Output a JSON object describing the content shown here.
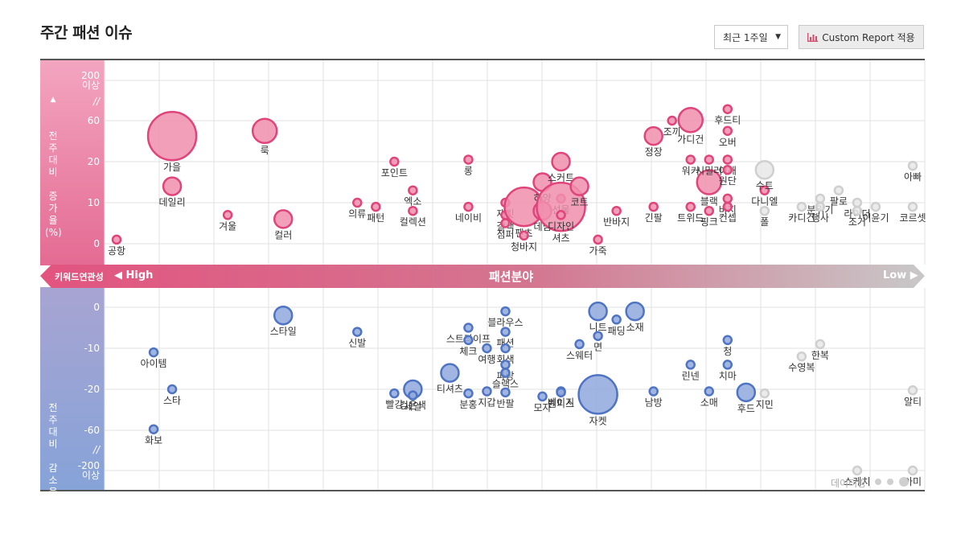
{
  "header": {
    "title": "주간 패션 이슈",
    "period_select": "최근 1주일",
    "report_button": "Custom Report 적용"
  },
  "axis": {
    "top_label": "전\n주\n대\n비\n \n증\n가\n율\n(%)",
    "bottom_label": "전\n주\n대\n비\n \n감\n소\n율\n(%)",
    "top_ticks": [
      "200\n이상",
      "60",
      "20",
      "10",
      "0"
    ],
    "bottom_ticks": [
      "0",
      "-10",
      "-20",
      "-60",
      "-200\n이상"
    ],
    "break_mark": "//"
  },
  "band": {
    "left_label": "키워드연관성",
    "high_label": "High",
    "center_label": "패션분야",
    "low_label": "Low"
  },
  "legend": {
    "label": "데이터량"
  },
  "colors": {
    "pink_fill": "#f08fae",
    "pink_stroke": "#e0447a",
    "blue_fill": "#8fa8dc",
    "blue_stroke": "#4f74c4",
    "gray_fill": "#e8e8e8",
    "gray_stroke": "#cfcfcf",
    "band_left": "#e2547f",
    "band_right": "#c8c8c8"
  },
  "chart_data": {
    "type": "scatter",
    "title": "",
    "xlabel": "패션분야 (키워드연관성 High → Low)",
    "ylabel": "전주대비 증감율(%)",
    "y_top_scale": [
      0,
      10,
      20,
      60,
      200
    ],
    "y_bottom_scale": [
      0,
      -10,
      -20,
      -60,
      -200
    ],
    "increase": [
      {
        "name": "공항",
        "rank": 1,
        "change": 1,
        "size": 1,
        "color": "pink"
      },
      {
        "name": "가을",
        "rank": 4,
        "change": 45,
        "size": 5,
        "color": "pink"
      },
      {
        "name": "데일리",
        "rank": 4,
        "change": 14,
        "size": 2,
        "color": "pink"
      },
      {
        "name": "겨울",
        "rank": 7,
        "change": 7,
        "size": 1,
        "color": "pink"
      },
      {
        "name": "룩",
        "rank": 9,
        "change": 50,
        "size": 3,
        "color": "pink"
      },
      {
        "name": "컬러",
        "rank": 10,
        "change": 6,
        "size": 2,
        "color": "pink"
      },
      {
        "name": "의류",
        "rank": 14,
        "change": 10,
        "size": 1,
        "color": "pink"
      },
      {
        "name": "패턴",
        "rank": 15,
        "change": 9,
        "size": 1,
        "color": "pink"
      },
      {
        "name": "포인트",
        "rank": 16,
        "change": 20,
        "size": 1,
        "color": "pink"
      },
      {
        "name": "엑소",
        "rank": 17,
        "change": 13,
        "size": 1,
        "color": "pink"
      },
      {
        "name": "컬렉션",
        "rank": 17,
        "change": 8,
        "size": 1,
        "color": "pink"
      },
      {
        "name": "롱",
        "rank": 20,
        "change": 22,
        "size": 1,
        "color": "pink"
      },
      {
        "name": "네이비",
        "rank": 20,
        "change": 9,
        "size": 1,
        "color": "pink"
      },
      {
        "name": "재킷",
        "rank": 22,
        "change": 10,
        "size": 1,
        "color": "pink"
      },
      {
        "name": "갈색",
        "rank": 22,
        "change": 7,
        "size": 1,
        "color": "pink"
      },
      {
        "name": "점퍼",
        "rank": 22,
        "change": 5,
        "size": 1,
        "color": "pink"
      },
      {
        "name": "팬츠",
        "rank": 23,
        "change": 9,
        "size": 4,
        "color": "pink"
      },
      {
        "name": "청바지",
        "rank": 23,
        "change": 2,
        "size": 1,
        "color": "pink"
      },
      {
        "name": "하양",
        "rank": 24,
        "change": 15,
        "size": 2,
        "color": "pink"
      },
      {
        "name": "데님",
        "rank": 24,
        "change": 8,
        "size": 2,
        "color": "pink"
      },
      {
        "name": "스커트",
        "rank": 25,
        "change": 20,
        "size": 2,
        "color": "pink"
      },
      {
        "name": "선물",
        "rank": 25,
        "change": 11,
        "size": 1,
        "color": "pink"
      },
      {
        "name": "셔츠",
        "rank": 25,
        "change": 9,
        "size": 5,
        "color": "pink"
      },
      {
        "name": "디자인",
        "rank": 25,
        "change": 7,
        "size": 1,
        "color": "pink"
      },
      {
        "name": "코트",
        "rank": 26,
        "change": 14,
        "size": 2,
        "color": "pink"
      },
      {
        "name": "가죽",
        "rank": 27,
        "change": 1,
        "size": 1,
        "color": "pink"
      },
      {
        "name": "반바지",
        "rank": 28,
        "change": 8,
        "size": 1,
        "color": "pink"
      },
      {
        "name": "긴팔",
        "rank": 30,
        "change": 9,
        "size": 1,
        "color": "pink"
      },
      {
        "name": "정장",
        "rank": 30,
        "change": 45,
        "size": 2,
        "color": "pink"
      },
      {
        "name": "조끼",
        "rank": 31,
        "change": 60,
        "size": 1,
        "color": "pink"
      },
      {
        "name": "가디건",
        "rank": 32,
        "change": 62,
        "size": 3,
        "color": "pink"
      },
      {
        "name": "워커",
        "rank": 32,
        "change": 22,
        "size": 1,
        "color": "pink"
      },
      {
        "name": "트위드",
        "rank": 32,
        "change": 9,
        "size": 1,
        "color": "pink"
      },
      {
        "name": "블랙",
        "rank": 33,
        "change": 15,
        "size": 3,
        "color": "pink"
      },
      {
        "name": "시밀러",
        "rank": 33,
        "change": 22,
        "size": 1,
        "color": "pink"
      },
      {
        "name": "핑크",
        "rank": 33,
        "change": 8,
        "size": 1,
        "color": "pink"
      },
      {
        "name": "후드티",
        "rank": 34,
        "change": 100,
        "size": 1,
        "color": "pink"
      },
      {
        "name": "오버",
        "rank": 34,
        "change": 50,
        "size": 1,
        "color": "pink"
      },
      {
        "name": "어깨",
        "rank": 34,
        "change": 22,
        "size": 1,
        "color": "pink"
      },
      {
        "name": "원단",
        "rank": 34,
        "change": 18,
        "size": 1,
        "color": "pink"
      },
      {
        "name": "바지",
        "rank": 34,
        "change": 11,
        "size": 1,
        "color": "pink"
      },
      {
        "name": "컨셉",
        "rank": 34,
        "change": 9,
        "size": 1,
        "color": "pink"
      },
      {
        "name": "다니엘",
        "rank": 36,
        "change": 13,
        "size": 1,
        "color": "pink"
      },
      {
        "name": "수트",
        "rank": 36,
        "change": 18,
        "size": 2,
        "color": "gray"
      },
      {
        "name": "폴",
        "rank": 36,
        "change": 8,
        "size": 1,
        "color": "gray"
      },
      {
        "name": "카디건",
        "rank": 38,
        "change": 9,
        "size": 1,
        "color": "gray"
      },
      {
        "name": "분위기",
        "rank": 39,
        "change": 11,
        "size": 1,
        "color": "gray"
      },
      {
        "name": "행사",
        "rank": 39,
        "change": 9,
        "size": 1,
        "color": "gray"
      },
      {
        "name": "팔로",
        "rank": 40,
        "change": 13,
        "size": 1,
        "color": "gray"
      },
      {
        "name": "라이더",
        "rank": 41,
        "change": 10,
        "size": 1,
        "color": "gray"
      },
      {
        "name": "조거",
        "rank": 41,
        "change": 8,
        "size": 1,
        "color": "gray"
      },
      {
        "name": "이윤기",
        "rank": 42,
        "change": 9,
        "size": 1,
        "color": "gray"
      },
      {
        "name": "아빠",
        "rank": 44,
        "change": 19,
        "size": 1,
        "color": "gray"
      },
      {
        "name": "코르셋",
        "rank": 44,
        "change": 9,
        "size": 1,
        "color": "gray"
      }
    ],
    "decrease": [
      {
        "name": "아이템",
        "rank": 3,
        "change": -11,
        "size": 1,
        "color": "blue"
      },
      {
        "name": "스타",
        "rank": 4,
        "change": -20,
        "size": 1,
        "color": "blue"
      },
      {
        "name": "화보",
        "rank": 3,
        "change": -59,
        "size": 1,
        "color": "blue"
      },
      {
        "name": "스타일",
        "rank": 10,
        "change": -2,
        "size": 2,
        "color": "blue"
      },
      {
        "name": "신발",
        "rank": 14,
        "change": -6,
        "size": 1,
        "color": "blue"
      },
      {
        "name": "검은색",
        "rank": 17,
        "change": -20,
        "size": 2,
        "color": "blue"
      },
      {
        "name": "빨강",
        "rank": 16,
        "change": -24,
        "size": 1,
        "color": "blue"
      },
      {
        "name": "세일",
        "rank": 17,
        "change": -26,
        "size": 1,
        "color": "blue"
      },
      {
        "name": "티셔츠",
        "rank": 19,
        "change": -16,
        "size": 2,
        "color": "blue"
      },
      {
        "name": "분홍",
        "rank": 20,
        "change": -24,
        "size": 1,
        "color": "blue"
      },
      {
        "name": "스트라이프",
        "rank": 20,
        "change": -5,
        "size": 1,
        "color": "blue"
      },
      {
        "name": "체크",
        "rank": 20,
        "change": -8,
        "size": 1,
        "color": "blue"
      },
      {
        "name": "여행",
        "rank": 21,
        "change": -10,
        "size": 1,
        "color": "blue"
      },
      {
        "name": "지갑",
        "rank": 21,
        "change": -22,
        "size": 1,
        "color": "blue"
      },
      {
        "name": "블라우스",
        "rank": 22,
        "change": -1,
        "size": 1,
        "color": "blue"
      },
      {
        "name": "패션",
        "rank": 22,
        "change": -6,
        "size": 1,
        "color": "blue"
      },
      {
        "name": "회색",
        "rank": 22,
        "change": -10,
        "size": 1,
        "color": "blue"
      },
      {
        "name": "파랑",
        "rank": 22,
        "change": -14,
        "size": 1,
        "color": "blue"
      },
      {
        "name": "슬랙스",
        "rank": 22,
        "change": -16,
        "size": 1,
        "color": "blue"
      },
      {
        "name": "반팔",
        "rank": 22,
        "change": -23,
        "size": 1,
        "color": "blue"
      },
      {
        "name": "모자",
        "rank": 24,
        "change": -27,
        "size": 1,
        "color": "blue"
      },
      {
        "name": "베이지",
        "rank": 25,
        "change": -22,
        "size": 1,
        "color": "blue"
      },
      {
        "name": "원피스",
        "rank": 25,
        "change": -23,
        "size": 1,
        "color": "blue"
      },
      {
        "name": "스웨터",
        "rank": 26,
        "change": -9,
        "size": 1,
        "color": "blue"
      },
      {
        "name": "니트",
        "rank": 27,
        "change": -1,
        "size": 2,
        "color": "blue"
      },
      {
        "name": "면",
        "rank": 27,
        "change": -7,
        "size": 1,
        "color": "blue"
      },
      {
        "name": "패딩",
        "rank": 28,
        "change": -3,
        "size": 1,
        "color": "blue"
      },
      {
        "name": "소재",
        "rank": 29,
        "change": -1,
        "size": 2,
        "color": "blue"
      },
      {
        "name": "자켓",
        "rank": 27,
        "change": -25,
        "size": 4,
        "color": "blue"
      },
      {
        "name": "남방",
        "rank": 30,
        "change": -22,
        "size": 1,
        "color": "blue"
      },
      {
        "name": "린넨",
        "rank": 32,
        "change": -14,
        "size": 1,
        "color": "blue"
      },
      {
        "name": "소매",
        "rank": 33,
        "change": -22,
        "size": 1,
        "color": "blue"
      },
      {
        "name": "청",
        "rank": 34,
        "change": -8,
        "size": 1,
        "color": "blue"
      },
      {
        "name": "치마",
        "rank": 34,
        "change": -14,
        "size": 1,
        "color": "blue"
      },
      {
        "name": "후드",
        "rank": 35,
        "change": -23,
        "size": 2,
        "color": "blue"
      },
      {
        "name": "지민",
        "rank": 36,
        "change": -24,
        "size": 1,
        "color": "gray"
      },
      {
        "name": "수영복",
        "rank": 38,
        "change": -12,
        "size": 1,
        "color": "gray"
      },
      {
        "name": "한복",
        "rank": 39,
        "change": -9,
        "size": 1,
        "color": "gray"
      },
      {
        "name": "알티",
        "rank": 44,
        "change": -21,
        "size": 1,
        "color": "gray"
      },
      {
        "name": "스케치",
        "rank": 41,
        "change": -200,
        "size": 1,
        "color": "gray"
      },
      {
        "name": "아미",
        "rank": 44,
        "change": -200,
        "size": 1,
        "color": "gray"
      }
    ]
  }
}
